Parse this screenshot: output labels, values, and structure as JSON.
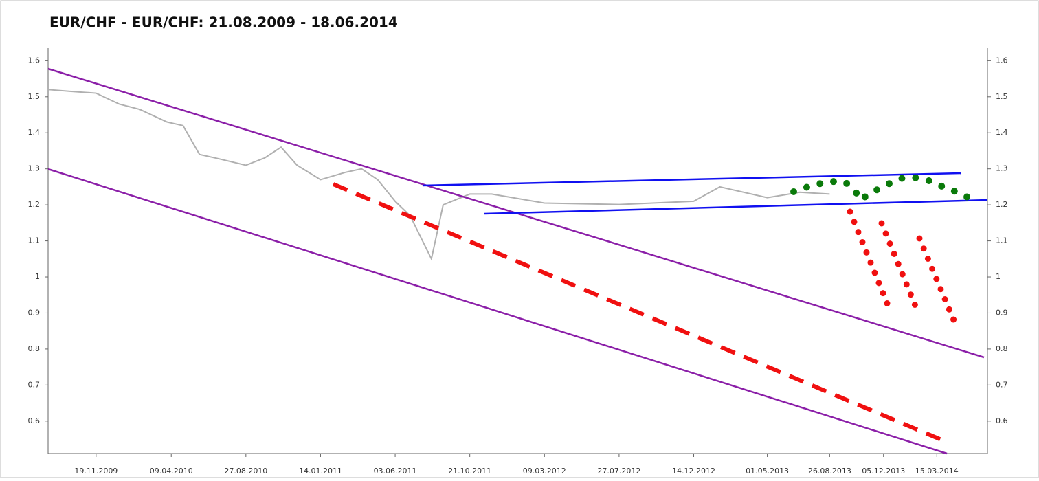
{
  "chart_data": {
    "type": "line",
    "title": "EUR/CHF - EUR/CHF: 21.08.2009 - 18.06.2014",
    "xlim": [
      "21.08.2009",
      "18.06.2014"
    ],
    "xticks": [
      "19.11.2009",
      "09.04.2010",
      "27.08.2010",
      "14.01.2011",
      "03.06.2011",
      "21.10.2011",
      "09.03.2012",
      "27.07.2012",
      "14.12.2012",
      "01.05.2013",
      "26.08.2013",
      "05.12.2013",
      "15.03.2014"
    ],
    "ylim": [
      0.51,
      1.635
    ],
    "yticks": [
      0.6,
      0.7,
      0.8,
      0.9,
      1,
      1.1,
      1.2,
      1.3,
      1.4,
      1.5,
      1.6
    ],
    "y2lim": [
      0.51,
      1.635
    ],
    "y2ticks": [
      0.6,
      0.7,
      0.8,
      0.9,
      1,
      1.1,
      1.2,
      1.3,
      1.4,
      1.5,
      1.6
    ],
    "series": [
      {
        "color": "#b0b0b0",
        "x": [
          "21.08.2009",
          "01.10.2009",
          "19.11.2009",
          "01.01.2010",
          "09.02.2010",
          "01.04.2010",
          "01.05.2010",
          "01.06.2010",
          "01.07.2010",
          "27.08.2010",
          "01.10.2010",
          "01.11.2010",
          "01.12.2010",
          "14.01.2011",
          "01.03.2011",
          "01.04.2011",
          "01.05.2011",
          "03.06.2011",
          "01.07.2011",
          "10.08.2011",
          "01.09.2011",
          "21.10.2011",
          "01.12.2011",
          "09.03.2012",
          "27.07.2012",
          "14.12.2012",
          "01.02.2013",
          "01.05.2013",
          "01.07.2013",
          "26.08.2013"
        ],
        "values": [
          1.52,
          1.515,
          1.51,
          1.48,
          1.465,
          1.43,
          1.42,
          1.34,
          1.33,
          1.31,
          1.33,
          1.36,
          1.31,
          1.27,
          1.29,
          1.3,
          1.27,
          1.21,
          1.17,
          1.05,
          1.2,
          1.23,
          1.23,
          1.205,
          1.201,
          1.21,
          1.25,
          1.22,
          1.235,
          1.23
        ]
      }
    ]
  }
}
